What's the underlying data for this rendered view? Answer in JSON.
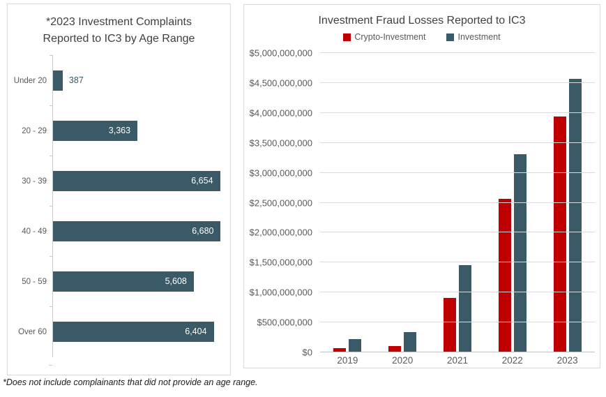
{
  "footnote": "*Does not include complainants that did not provide an age range.",
  "colors": {
    "crypto_red": "#C00000",
    "investment_slate": "#3B5A68",
    "title_text": "#404040",
    "axis_text": "#595959",
    "gridline": "#DCDCDC",
    "panel_border": "#D9D9D9"
  },
  "chart_data": [
    {
      "type": "bar",
      "orientation": "horizontal",
      "title": "*2023 Investment Complaints Reported to IC3 by Age Range",
      "categories": [
        "Under 20",
        "20 - 29",
        "30 - 39",
        "40 - 49",
        "50 - 59",
        "Over 60"
      ],
      "values": [
        387,
        3363,
        6654,
        6680,
        5608,
        6404
      ],
      "value_labels": [
        "387",
        "3,363",
        "6,654",
        "6,680",
        "5,608",
        "6,404"
      ],
      "xlim": [
        0,
        7000
      ],
      "grid": false,
      "bar_color": "#3B5A68",
      "value_label_inside_color": "#FFFFFF",
      "value_label_outside_color": "#3B5A68"
    },
    {
      "type": "bar",
      "orientation": "vertical",
      "title": "Investment Fraud Losses Reported to IC3",
      "categories": [
        "2019",
        "2020",
        "2021",
        "2022",
        "2023"
      ],
      "series": [
        {
          "name": "Crypto-Investment",
          "color": "#C00000",
          "values": [
            70000000,
            110000000,
            907000000,
            2570000000,
            3940000000
          ]
        },
        {
          "name": "Investment",
          "color": "#3B5A68",
          "values": [
            220000000,
            335000000,
            1460000000,
            3310000000,
            4570000000
          ]
        }
      ],
      "ylim": [
        0,
        5000000000
      ],
      "y_tick_step": 500000000,
      "y_tick_labels": [
        "$0",
        "$500,000,000",
        "$1,000,000,000",
        "$1,500,000,000",
        "$2,000,000,000",
        "$2,500,000,000",
        "$3,000,000,000",
        "$3,500,000,000",
        "$4,000,000,000",
        "$4,500,000,000",
        "$5,000,000,000"
      ],
      "legend_position": "top",
      "grid": true
    }
  ]
}
